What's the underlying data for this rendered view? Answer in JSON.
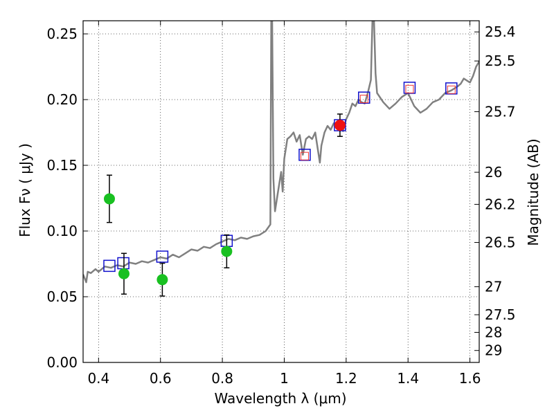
{
  "chart_data": {
    "type": "scatter",
    "xlabel": "Wavelength  λ (μm)",
    "ylabel": "Flux  Fν  ( μJy )",
    "ylabel_right": "Magnitude (AB)",
    "xlim": [
      0.35,
      1.63
    ],
    "ylim": [
      0.0,
      0.26
    ],
    "grid": true,
    "x_ticks": [
      0.4,
      0.6,
      0.8,
      1.0,
      1.2,
      1.4,
      1.6
    ],
    "x_tick_labels": [
      "0.4",
      "0.6",
      "0.8",
      "1",
      "1.2",
      "1.4",
      "1.6"
    ],
    "y_ticks": [
      0.0,
      0.05,
      0.1,
      0.15,
      0.2,
      0.25
    ],
    "y_tick_labels": [
      "0.00",
      "0.05",
      "0.10",
      "0.15",
      "0.20",
      "0.25"
    ],
    "right_ticks": [
      {
        "label": "25.4",
        "flux": 0.2515
      },
      {
        "label": "25.5",
        "flux": 0.2294
      },
      {
        "label": "25.7",
        "flux": 0.1908
      },
      {
        "label": "26",
        "flux": 0.1447
      },
      {
        "label": "26.2",
        "flux": 0.1203
      },
      {
        "label": "26.5",
        "flux": 0.0913
      },
      {
        "label": "27",
        "flux": 0.0576
      },
      {
        "label": "27.5",
        "flux": 0.0363
      },
      {
        "label": "28",
        "flux": 0.0229
      },
      {
        "label": "29",
        "flux": 0.0091
      }
    ],
    "green_points": [
      {
        "x": 0.435,
        "y": 0.1245,
        "err": 0.018
      },
      {
        "x": 0.482,
        "y": 0.0675,
        "err": 0.0155
      },
      {
        "x": 0.606,
        "y": 0.063,
        "err": 0.0125
      },
      {
        "x": 0.814,
        "y": 0.0845,
        "err": 0.0125
      }
    ],
    "red_point": {
      "x": 1.18,
      "y": 0.1805,
      "err": 0.0085
    },
    "blue_squares": [
      {
        "x": 0.435,
        "y": 0.0735
      },
      {
        "x": 0.48,
        "y": 0.0755
      },
      {
        "x": 0.606,
        "y": 0.0805
      },
      {
        "x": 0.814,
        "y": 0.0925
      },
      {
        "x": 1.066,
        "y": 0.158
      },
      {
        "x": 1.18,
        "y": 0.1805
      },
      {
        "x": 1.258,
        "y": 0.2015
      },
      {
        "x": 1.405,
        "y": 0.209
      },
      {
        "x": 1.54,
        "y": 0.2085
      }
    ],
    "red_inner_squares": [
      {
        "x": 1.066,
        "y": 0.157
      },
      {
        "x": 1.258,
        "y": 0.2005
      },
      {
        "x": 1.405,
        "y": 0.208
      },
      {
        "x": 1.54,
        "y": 0.2075
      }
    ],
    "template_spectrum": [
      [
        0.35,
        0.067
      ],
      [
        0.36,
        0.061
      ],
      [
        0.365,
        0.069
      ],
      [
        0.375,
        0.068
      ],
      [
        0.39,
        0.071
      ],
      [
        0.4,
        0.069
      ],
      [
        0.42,
        0.073
      ],
      [
        0.44,
        0.072
      ],
      [
        0.46,
        0.074
      ],
      [
        0.48,
        0.073
      ],
      [
        0.5,
        0.076
      ],
      [
        0.52,
        0.075
      ],
      [
        0.54,
        0.077
      ],
      [
        0.56,
        0.076
      ],
      [
        0.58,
        0.078
      ],
      [
        0.6,
        0.08
      ],
      [
        0.62,
        0.079
      ],
      [
        0.64,
        0.082
      ],
      [
        0.66,
        0.08
      ],
      [
        0.68,
        0.083
      ],
      [
        0.7,
        0.086
      ],
      [
        0.72,
        0.085
      ],
      [
        0.74,
        0.088
      ],
      [
        0.76,
        0.087
      ],
      [
        0.78,
        0.09
      ],
      [
        0.8,
        0.092
      ],
      [
        0.82,
        0.094
      ],
      [
        0.84,
        0.093
      ],
      [
        0.86,
        0.095
      ],
      [
        0.88,
        0.094
      ],
      [
        0.9,
        0.096
      ],
      [
        0.92,
        0.097
      ],
      [
        0.94,
        0.1
      ],
      [
        0.955,
        0.105
      ],
      [
        0.958,
        0.26
      ],
      [
        0.961,
        0.26
      ],
      [
        0.965,
        0.14
      ],
      [
        0.97,
        0.115
      ],
      [
        0.98,
        0.13
      ],
      [
        0.99,
        0.145
      ],
      [
        0.995,
        0.13
      ],
      [
        1.0,
        0.155
      ],
      [
        1.01,
        0.17
      ],
      [
        1.02,
        0.172
      ],
      [
        1.03,
        0.175
      ],
      [
        1.04,
        0.168
      ],
      [
        1.05,
        0.173
      ],
      [
        1.06,
        0.158
      ],
      [
        1.07,
        0.17
      ],
      [
        1.08,
        0.172
      ],
      [
        1.09,
        0.17
      ],
      [
        1.1,
        0.175
      ],
      [
        1.115,
        0.152
      ],
      [
        1.12,
        0.165
      ],
      [
        1.13,
        0.175
      ],
      [
        1.14,
        0.18
      ],
      [
        1.15,
        0.177
      ],
      [
        1.16,
        0.182
      ],
      [
        1.17,
        0.18
      ],
      [
        1.18,
        0.178
      ],
      [
        1.19,
        0.176
      ],
      [
        1.2,
        0.185
      ],
      [
        1.21,
        0.19
      ],
      [
        1.22,
        0.197
      ],
      [
        1.23,
        0.195
      ],
      [
        1.24,
        0.2
      ],
      [
        1.25,
        0.198
      ],
      [
        1.26,
        0.197
      ],
      [
        1.27,
        0.205
      ],
      [
        1.28,
        0.215
      ],
      [
        1.285,
        0.26
      ],
      [
        1.29,
        0.26
      ],
      [
        1.295,
        0.22
      ],
      [
        1.3,
        0.205
      ],
      [
        1.32,
        0.198
      ],
      [
        1.34,
        0.193
      ],
      [
        1.36,
        0.197
      ],
      [
        1.38,
        0.202
      ],
      [
        1.4,
        0.205
      ],
      [
        1.42,
        0.195
      ],
      [
        1.44,
        0.19
      ],
      [
        1.46,
        0.193
      ],
      [
        1.48,
        0.198
      ],
      [
        1.5,
        0.2
      ],
      [
        1.52,
        0.205
      ],
      [
        1.54,
        0.207
      ],
      [
        1.56,
        0.21
      ],
      [
        1.57,
        0.212
      ],
      [
        1.58,
        0.216
      ],
      [
        1.6,
        0.213
      ],
      [
        1.61,
        0.218
      ],
      [
        1.62,
        0.225
      ],
      [
        1.63,
        0.229
      ]
    ]
  },
  "colors": {
    "green": "#19c021",
    "red": "#ee1111",
    "blue": "#1010cc",
    "inner_red": "#ee3333",
    "spectrum": "#808080"
  }
}
